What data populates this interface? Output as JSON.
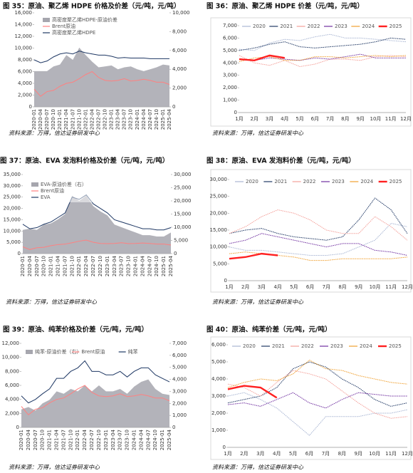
{
  "chart_data": [
    {
      "type": "combo",
      "title": "图 35：原油、聚乙烯 HDPE 价格及价差（元/吨，元/吨）",
      "source": "资料来源：万得，信达证券研发中心",
      "categories": [
        "2020-01",
        "2020-04",
        "2020-07",
        "2020-10",
        "2021-01",
        "2021-04",
        "2021-07",
        "2021-10",
        "2022-01",
        "2022-04",
        "2022-07",
        "2022-10",
        "2023-01",
        "2023-04",
        "2023-07",
        "2023-10",
        "2024-01",
        "2024-04",
        "2024-07",
        "2024-10",
        "2025-01",
        "2025-04"
      ],
      "ylim": [
        0,
        16000
      ],
      "yticks": [
        0,
        {
          "value": 2000,
          "label": "2,000"
        },
        {
          "value": 4000,
          "label": "4,000"
        },
        {
          "value": 6000,
          "label": "6,000"
        },
        {
          "value": 8000,
          "label": "8,000"
        },
        {
          "value": 10000,
          "label": "10,000"
        },
        {
          "value": 12000,
          "label": "12,000"
        },
        {
          "value": 14000,
          "label": "14,000"
        },
        {
          "value": 16000,
          "label": "16,000"
        }
      ],
      "y2lim": [
        0,
        10000
      ],
      "y2ticks": [
        0,
        {
          "value": 2000,
          "label": "2,000"
        },
        {
          "value": 4000,
          "label": "4,000"
        },
        {
          "value": 6000,
          "label": "6,000"
        },
        {
          "value": 8000,
          "label": "8,000"
        },
        {
          "value": 10000,
          "label": "10,000"
        }
      ],
      "series": [
        {
          "name": "高密度聚乙烯HDPE-原油价差",
          "type": "area",
          "axis": "y2",
          "color": "#a6a6ae",
          "values": [
            3800,
            3800,
            3800,
            4300,
            4500,
            5500,
            5000,
            6300,
            5500,
            4800,
            4200,
            4300,
            4400,
            4000,
            4200,
            4300,
            4000,
            3800,
            4000,
            4200,
            4500,
            4400
          ]
        },
        {
          "name": "Brent原油",
          "type": "line",
          "color": "#ff8080",
          "values": [
            3000,
            1800,
            2600,
            2800,
            3500,
            4000,
            4200,
            4800,
            5500,
            6000,
            5000,
            4500,
            4400,
            4500,
            4800,
            4400,
            4500,
            4700,
            4500,
            4200,
            4200,
            3800
          ]
        },
        {
          "name": "高密度聚乙烯HDPE",
          "type": "line",
          "color": "#1f3864",
          "values": [
            8000,
            7500,
            7800,
            8500,
            9000,
            9200,
            9000,
            9500,
            9200,
            9000,
            8800,
            8800,
            8600,
            8300,
            8400,
            8300,
            8300,
            8300,
            8200,
            8200,
            8200,
            8200
          ]
        }
      ]
    },
    {
      "type": "line",
      "title": "图 36：原油、聚乙烯 HDPE 价差（元/吨，元/吨）",
      "source": "资料来源：万得，信达证券研发中心",
      "categories": [
        "1月",
        "2月",
        "3月",
        "4月",
        "5月",
        "6月",
        "7月",
        "8月",
        "9月",
        "10月",
        "11月",
        "12月"
      ],
      "ylim": [
        0,
        7000
      ],
      "yticks": [
        0,
        {
          "value": 1000,
          "label": "1,000"
        },
        {
          "value": 2000,
          "label": "2,000"
        },
        {
          "value": 3000,
          "label": "3,000"
        },
        {
          "value": 4000,
          "label": "4,000"
        },
        {
          "value": 5000,
          "label": "5,000"
        },
        {
          "value": 6000,
          "label": "6,000"
        },
        {
          "value": 7000,
          "label": "7,000"
        }
      ],
      "series": [
        {
          "name": "2020",
          "color": "#a9b6d3",
          "values": [
            5100,
            5000,
            5600,
            5900,
            5800,
            6100,
            6300,
            6000,
            6000,
            5900,
            5800,
            5700
          ]
        },
        {
          "name": "2021",
          "color": "#203864",
          "values": [
            5000,
            5200,
            5500,
            5700,
            5300,
            5200,
            5300,
            5400,
            5500,
            5700,
            6000,
            5900
          ]
        },
        {
          "name": "2022",
          "color": "#f4a09a",
          "values": [
            4600,
            4000,
            3800,
            4200,
            3700,
            3900,
            4300,
            4300,
            4200,
            4500,
            4600,
            4500
          ]
        },
        {
          "name": "2023",
          "color": "#7030a0",
          "values": [
            4300,
            4200,
            4400,
            4300,
            4200,
            4400,
            4300,
            4500,
            4700,
            4400,
            4400,
            4400
          ]
        },
        {
          "name": "2024",
          "color": "#f0a030",
          "values": [
            4100,
            4400,
            4500,
            4200,
            4200,
            4500,
            4500,
            4400,
            4500,
            4600,
            4500,
            4600
          ]
        },
        {
          "name": "2025",
          "color": "#ff2020",
          "values": [
            4300,
            4200,
            4600,
            4400,
            null,
            null,
            null,
            null,
            null,
            null,
            null,
            null
          ]
        }
      ]
    },
    {
      "type": "combo",
      "title": "图 37：原油、EVA 发泡料价格及价差（元/吨，元/吨）",
      "source": "资料来源：万得，信达证券研发中心",
      "categories": [
        "2020-01",
        "2020-04",
        "2020-07",
        "2020-10",
        "2021-01",
        "2021-04",
        "2021-07",
        "2021-10",
        "2022-01",
        "2022-04",
        "2022-07",
        "2022-10",
        "2023-01",
        "2023-04",
        "2023-07",
        "2023-10",
        "2024-01",
        "2024-04",
        "2024-07",
        "2024-10",
        "2025-01",
        "2025-04"
      ],
      "ylim": [
        0,
        35000
      ],
      "yticks": [
        0,
        {
          "value": 5000,
          "label": "5,000"
        },
        {
          "value": 10000,
          "label": "10,000"
        },
        {
          "value": 15000,
          "label": "15,000"
        },
        {
          "value": 20000,
          "label": "20,000"
        },
        {
          "value": 25000,
          "label": "25,000"
        },
        {
          "value": 30000,
          "label": "30,000"
        },
        {
          "value": 35000,
          "label": "35,000"
        }
      ],
      "y2lim": [
        0,
        30000
      ],
      "y2ticks": [
        0,
        {
          "value": 5000,
          "label": "5,000"
        },
        {
          "value": 10000,
          "label": "10,000"
        },
        {
          "value": 15000,
          "label": "15,000"
        },
        {
          "value": 20000,
          "label": "20,000"
        },
        {
          "value": 25000,
          "label": "25,000"
        },
        {
          "value": 30000,
          "label": "30,000"
        }
      ],
      "series": [
        {
          "name": "EVA-原油价差（右）",
          "type": "area",
          "axis": "y2",
          "color": "#a6a6ae",
          "values": [
            9000,
            9500,
            9000,
            11000,
            11500,
            13000,
            15000,
            22000,
            20000,
            22000,
            18000,
            16000,
            14500,
            11000,
            10000,
            9000,
            8000,
            7000,
            7000,
            6500,
            6500,
            8000
          ]
        },
        {
          "name": "Brent原油",
          "type": "line",
          "color": "#ff8080",
          "values": [
            3000,
            1800,
            2600,
            2800,
            3500,
            4000,
            4200,
            4800,
            5500,
            6000,
            5000,
            4500,
            4400,
            4500,
            4800,
            4400,
            4500,
            4700,
            4500,
            4200,
            4200,
            3800
          ]
        },
        {
          "name": "EVA",
          "type": "line",
          "color": "#1f3864",
          "values": [
            13000,
            11000,
            11500,
            13000,
            14000,
            16000,
            18000,
            25000,
            24000,
            26000,
            22000,
            20000,
            18000,
            15000,
            14000,
            13000,
            12000,
            11000,
            11000,
            10500,
            10500,
            11500
          ]
        }
      ]
    },
    {
      "type": "line",
      "title": "图 38：原油、EVA 发泡料价差（元/吨，元/吨）",
      "source": "资料来源：万得，信达证券研发中心",
      "categories": [
        "1月",
        "2月",
        "3月",
        "4月",
        "5月",
        "6月",
        "7月",
        "8月",
        "9月",
        "10月",
        "11月",
        "12月"
      ],
      "ylim": [
        0,
        30000
      ],
      "yticks": [
        0,
        {
          "value": 5000,
          "label": "5,000"
        },
        {
          "value": 10000,
          "label": "10,000"
        },
        {
          "value": 15000,
          "label": "15,000"
        },
        {
          "value": 20000,
          "label": "20,000"
        },
        {
          "value": 25000,
          "label": "25,000"
        },
        {
          "value": 30000,
          "label": "30,000"
        }
      ],
      "series": [
        {
          "name": "2020",
          "color": "#a9b6d3",
          "values": [
            10000,
            9000,
            9000,
            8500,
            8000,
            7500,
            7500,
            8000,
            10000,
            12000,
            17000,
            16000
          ]
        },
        {
          "name": "2021",
          "color": "#203864",
          "values": [
            14000,
            15000,
            15500,
            14000,
            13000,
            12500,
            12000,
            13000,
            18000,
            24500,
            21000,
            14000
          ]
        },
        {
          "name": "2022",
          "color": "#f4a09a",
          "values": [
            14000,
            16000,
            19000,
            21000,
            20000,
            18000,
            15000,
            14000,
            14000,
            19000,
            16000,
            12000
          ]
        },
        {
          "name": "2023",
          "color": "#7030a0",
          "values": [
            11000,
            12000,
            14000,
            13000,
            12000,
            11000,
            10000,
            11000,
            11000,
            9000,
            8500,
            7500
          ]
        },
        {
          "name": "2024",
          "color": "#f0a030",
          "values": [
            8000,
            8500,
            8000,
            7500,
            7000,
            6000,
            6000,
            6500,
            6500,
            6500,
            6500,
            7000
          ]
        },
        {
          "name": "2025",
          "color": "#ff2020",
          "values": [
            6500,
            7000,
            8000,
            7500,
            null,
            null,
            null,
            null,
            null,
            null,
            null,
            null
          ]
        }
      ]
    },
    {
      "type": "combo",
      "title": "图 39：原油、纯苯价格及价差（元/吨，元/吨）",
      "source": "资料来源：万得，信达证券研发中心",
      "categories": [
        "2020-01",
        "2020-04",
        "2020-07",
        "2020-10",
        "2021-01",
        "2021-04",
        "2021-07",
        "2021-10",
        "2022-01",
        "2022-04",
        "2022-07",
        "2022-10",
        "2023-01",
        "2023-04",
        "2023-07",
        "2023-10",
        "2024-01",
        "2024-04",
        "2024-07",
        "2024-10",
        "2025-01",
        "2025-04"
      ],
      "ylim": [
        0,
        12000
      ],
      "yticks": [
        0,
        {
          "value": 2000,
          "label": "2,000"
        },
        {
          "value": 4000,
          "label": "4,000"
        },
        {
          "value": 6000,
          "label": "6,000"
        },
        {
          "value": 8000,
          "label": "8,000"
        },
        {
          "value": 10000,
          "label": "10,000"
        },
        {
          "value": 12000,
          "label": "12,000"
        }
      ],
      "y2lim": [
        0,
        7000
      ],
      "y2ticks": [
        0,
        {
          "value": 1000,
          "label": "1,000"
        },
        {
          "value": 2000,
          "label": "2,000"
        },
        {
          "value": 3000,
          "label": "3,000"
        },
        {
          "value": 4000,
          "label": "4,000"
        },
        {
          "value": 5000,
          "label": "5,000"
        },
        {
          "value": 6000,
          "label": "6,000"
        },
        {
          "value": 7000,
          "label": "7,000"
        }
      ],
      "series": [
        {
          "name": "纯苯-原油价差（右）",
          "type": "area",
          "axis": "y2",
          "color": "#a6a6ae",
          "values": [
            1500,
            1700,
            1400,
            2000,
            2300,
            3000,
            2800,
            3200,
            3000,
            3500,
            3000,
            3500,
            3000,
            3000,
            3200,
            2800,
            3400,
            3800,
            4000,
            3200,
            2800,
            2700
          ]
        },
        {
          "name": "Brent原油",
          "type": "line",
          "color": "#ff8080",
          "values": [
            3000,
            1800,
            2600,
            2800,
            3500,
            4000,
            4200,
            4800,
            5500,
            6000,
            5000,
            4500,
            4400,
            4500,
            4800,
            4400,
            4500,
            4700,
            4500,
            4200,
            4200,
            3800
          ]
        },
        {
          "name": "纯苯",
          "type": "line",
          "color": "#1f3864",
          "values": [
            4500,
            3500,
            4000,
            4800,
            5500,
            7000,
            7000,
            8000,
            8500,
            9500,
            8000,
            8000,
            7500,
            7500,
            8000,
            7200,
            8000,
            8500,
            8500,
            7500,
            7000,
            6500
          ]
        }
      ]
    },
    {
      "type": "line",
      "title": "图 40：原油、纯苯价差（元/吨，元/吨）",
      "source": "资料来源：万得，信达证券研发中心",
      "categories": [
        "1月",
        "2月",
        "3月",
        "4月",
        "5月",
        "6月",
        "7月",
        "8月",
        "9月",
        "10月",
        "11月",
        "12月"
      ],
      "ylim": [
        0,
        6000
      ],
      "yticks": [
        0,
        {
          "value": 1000,
          "label": "1,000"
        },
        {
          "value": 2000,
          "label": "2,000"
        },
        {
          "value": 3000,
          "label": "3,000"
        },
        {
          "value": 4000,
          "label": "4,000"
        },
        {
          "value": 5000,
          "label": "5,000"
        },
        {
          "value": 6000,
          "label": "6,000"
        }
      ],
      "series": [
        {
          "name": "2020",
          "color": "#a9b6d3",
          "values": [
            3000,
            3200,
            2800,
            2300,
            1500,
            700,
            1800,
            1800,
            1800,
            2000,
            2000,
            2200
          ]
        },
        {
          "name": "2021",
          "color": "#203864",
          "values": [
            2600,
            2800,
            3000,
            3500,
            4600,
            5000,
            4700,
            4000,
            3500,
            2800,
            2400,
            2600
          ]
        },
        {
          "name": "2022",
          "color": "#f4a09a",
          "values": [
            3700,
            3500,
            3000,
            3800,
            4500,
            4300,
            4000,
            3300,
            2600,
            2000,
            1700,
            1800
          ]
        },
        {
          "name": "2023",
          "color": "#7030a0",
          "values": [
            2500,
            2600,
            2400,
            2800,
            3200,
            2600,
            2300,
            2800,
            3200,
            3100,
            3000,
            3000
          ]
        },
        {
          "name": "2024",
          "color": "#f0a030",
          "values": [
            3500,
            3800,
            4000,
            3900,
            4300,
            5100,
            4600,
            4500,
            4200,
            4000,
            3800,
            3700
          ]
        },
        {
          "name": "2025",
          "color": "#ff2020",
          "values": [
            3400,
            3600,
            3500,
            2900,
            null,
            null,
            null,
            null,
            null,
            null,
            null,
            null
          ]
        }
      ]
    }
  ]
}
